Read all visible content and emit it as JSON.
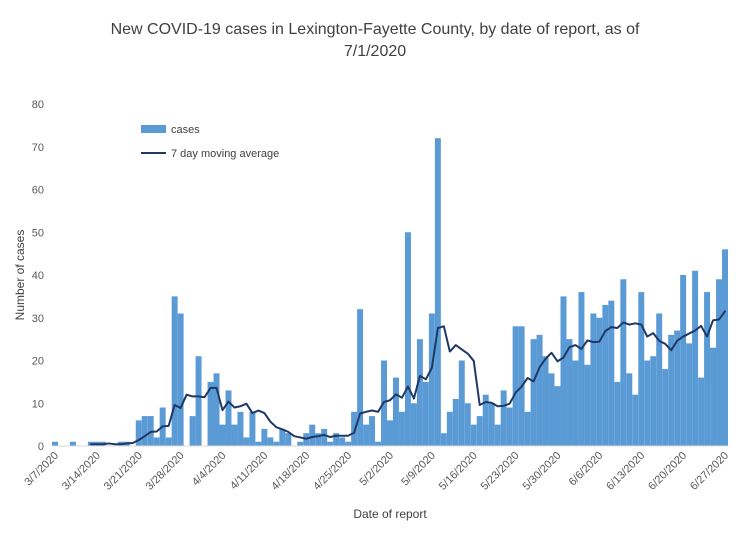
{
  "chart_data": {
    "type": "bar",
    "title_lines": [
      "New COVID-19 cases in Lexington-Fayette County, by date of report, as of",
      "7/1/2020"
    ],
    "xlabel": "Date of report",
    "ylabel": "Number of cases",
    "ylim": [
      0,
      80
    ],
    "yticks": [
      0,
      10,
      20,
      30,
      40,
      50,
      60,
      70,
      80
    ],
    "grid": false,
    "legend_position": "top-left",
    "x_tick_labels": [
      "3/7/2020",
      "3/14/2020",
      "3/21/2020",
      "3/28/2020",
      "4/4/2020",
      "4/11/2020",
      "4/18/2020",
      "4/25/2020",
      "5/2/2020",
      "5/9/2020",
      "5/16/2020",
      "5/23/2020",
      "5/30/2020",
      "6/6/2020",
      "6/13/2020",
      "6/20/2020",
      "6/27/2020"
    ],
    "x_start_date": "3/7/2020",
    "x_end_date": "7/1/2020",
    "series": [
      {
        "name": "cases",
        "kind": "bar",
        "color": "#5b9bd5",
        "values": [
          1,
          0,
          0,
          1,
          0,
          0,
          1,
          1,
          1,
          0,
          0,
          1,
          1,
          0,
          6,
          7,
          7,
          2,
          9,
          2,
          35,
          31,
          0,
          7,
          21,
          0,
          15,
          17,
          5,
          13,
          5,
          8,
          2,
          8,
          1,
          4,
          2,
          1,
          4,
          3,
          0,
          1,
          3,
          5,
          3,
          4,
          1,
          3,
          2,
          1,
          8,
          32,
          5,
          7,
          1,
          20,
          6,
          16,
          8,
          50,
          10,
          25,
          15,
          31,
          72,
          3,
          8,
          11,
          20,
          10,
          5,
          7,
          12,
          10,
          5,
          13,
          9,
          28,
          28,
          8,
          25,
          26,
          21,
          17,
          14,
          35,
          25,
          20,
          36,
          19,
          31,
          30,
          33,
          34,
          15,
          39,
          17,
          12,
          36,
          20,
          21,
          31,
          18,
          26,
          27,
          40,
          24,
          41,
          16,
          36,
          23,
          39,
          46
        ]
      },
      {
        "name": "7 day moving average",
        "kind": "line",
        "color": "#1f3864",
        "values": [
          null,
          null,
          null,
          null,
          null,
          null,
          0.4,
          0.4,
          0.4,
          0.6,
          0.4,
          0.4,
          0.6,
          0.7,
          1.4,
          2.3,
          3.3,
          3.4,
          4.6,
          4.7,
          9.6,
          8.9,
          12.0,
          11.6,
          11.6,
          11.4,
          13.6,
          13.6,
          8.4,
          10.4,
          9.0,
          9.3,
          9.9,
          7.7,
          8.3,
          7.7,
          5.7,
          4.4,
          3.9,
          3.3,
          2.3,
          2.0,
          1.7,
          2.1,
          2.3,
          2.6,
          2.1,
          2.4,
          2.4,
          2.4,
          3.1,
          7.6,
          8.0,
          8.3,
          8.0,
          10.3,
          10.7,
          12.1,
          11.3,
          13.9,
          11.1,
          16.4,
          15.6,
          18.3,
          27.6,
          28.0,
          22.1,
          23.6,
          22.6,
          21.6,
          19.9,
          9.6,
          10.3,
          10.1,
          9.3,
          9.4,
          9.9,
          12.5,
          13.9,
          15.9,
          15.1,
          18.4,
          20.4,
          21.8,
          19.8,
          20.7,
          23.1,
          23.6,
          22.7,
          24.7,
          24.3,
          24.4,
          26.9,
          27.8,
          27.6,
          28.9,
          28.4,
          28.7,
          28.4,
          25.6,
          26.4,
          24.6,
          23.9,
          22.4,
          24.6,
          25.6,
          26.3,
          27.0,
          28.1,
          25.6,
          29.4,
          29.6,
          31.5
        ]
      }
    ]
  }
}
